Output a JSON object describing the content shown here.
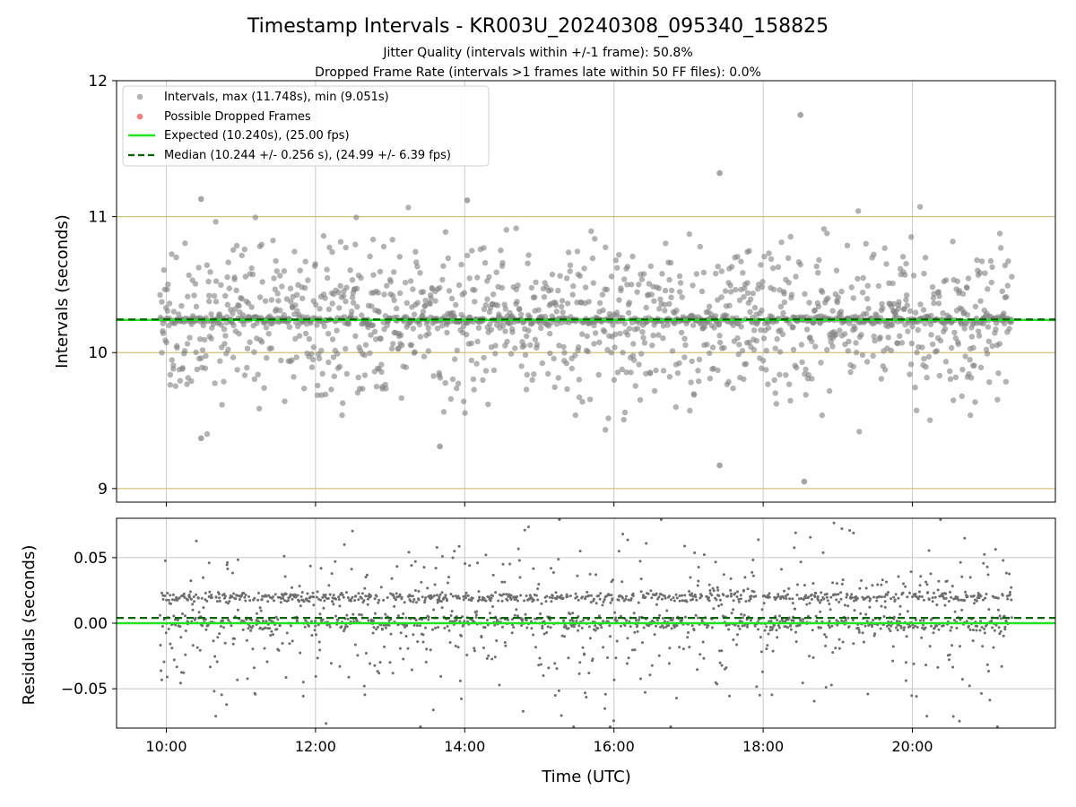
{
  "figure": {
    "title": "Timestamp Intervals - KR003U_20240308_095340_158825",
    "subtitle_1": "Jitter Quality (intervals within +/-1 frame): 50.8%",
    "subtitle_2": "Dropped Frame Rate (intervals >1 frames late within 50 FF files): 0.0%"
  },
  "colors": {
    "points": "#808080",
    "dropped": "#ff6f6f",
    "expected": "#1fe51f",
    "median": "#006400",
    "band": "#d4c27a",
    "grid": "#c8c8c8"
  },
  "chart_data": [
    {
      "type": "scatter",
      "ylabel": "Intervals (seconds)",
      "x_range": [
        "09:20",
        "21:55"
      ],
      "ylim": [
        8.9,
        12.0
      ],
      "yticks": [
        "9",
        "10",
        "11",
        "12"
      ],
      "grid": "vertical",
      "legend_position": "top-left",
      "legend": [
        "Intervals, max (11.748s), min (9.051s)",
        "Possible Dropped Frames",
        "Expected (10.240s), (25.00 fps)",
        "Median (10.244 +/- 0.256 s), (24.99 +/- 6.39 fps)"
      ],
      "expected": 10.24,
      "median": 10.244,
      "reference_lines": [
        9,
        10,
        11
      ],
      "max_interval": 11.748,
      "min_interval": 9.051,
      "outliers": [
        {
          "x": "18:30",
          "y": 11.748
        },
        {
          "x": "18:33",
          "y": 9.051
        },
        {
          "x": "17:25",
          "y": 11.32
        },
        {
          "x": "17:25",
          "y": 9.17
        },
        {
          "x": "10:28",
          "y": 11.13
        },
        {
          "x": "14:02",
          "y": 11.12
        },
        {
          "x": "13:40",
          "y": 9.31
        },
        {
          "x": "10:28",
          "y": 9.37
        }
      ],
      "series_approx": {
        "x_start": "09:55",
        "x_end": "21:20",
        "count": 1800
      }
    },
    {
      "type": "scatter",
      "ylabel": "Residuals (seconds)",
      "xlabel": "Time (UTC)",
      "ylim": [
        -0.08,
        0.08
      ],
      "yticks": [
        "0.05",
        "0.00",
        "−0.05"
      ],
      "xticks": [
        "10:00",
        "12:00",
        "14:00",
        "16:00",
        "18:00",
        "20:00"
      ],
      "grid": "both",
      "expected_residual": 0.0,
      "median_residual": 0.004,
      "series_approx": {
        "x_start": "09:55",
        "x_end": "21:20",
        "count": 1800
      }
    }
  ]
}
